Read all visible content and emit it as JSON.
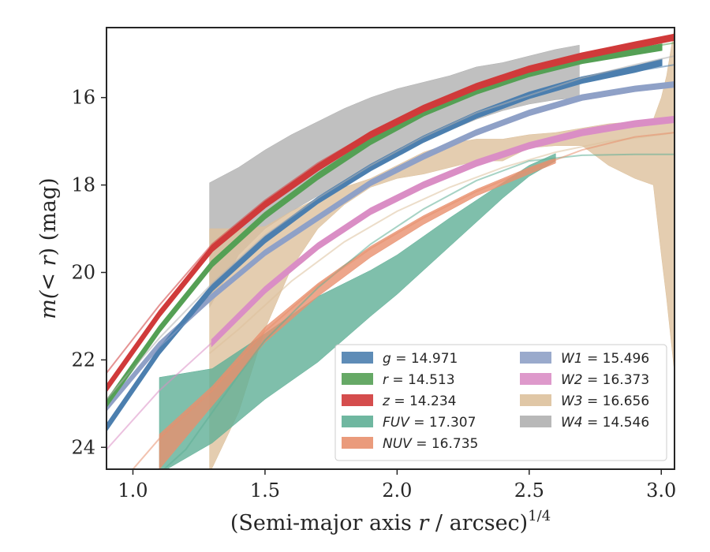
{
  "chart_data": {
    "type": "area",
    "xlabel": "(Semi-major axis r / arcsec)1/4",
    "xlabel_parts": {
      "main": "(Semi-major axis ",
      "var": "r",
      "rest": " / arcsec)",
      "sup": "1/4"
    },
    "ylabel_parts": {
      "main": "m(< ",
      "var": "r",
      "rest": ") (mag)"
    },
    "ylabel": "m(< r) (mag)",
    "xlim": [
      0.9,
      3.05
    ],
    "ylim": [
      24.5,
      14.4
    ],
    "y_inverted": true,
    "x_ticks": [
      1.0,
      1.5,
      2.0,
      2.5,
      3.0
    ],
    "x_tick_labels": [
      "1.0",
      "1.5",
      "2.0",
      "2.5",
      "3.0"
    ],
    "y_ticks": [
      16,
      18,
      20,
      22,
      24
    ],
    "y_tick_labels": [
      "16",
      "18",
      "20",
      "22",
      "24"
    ],
    "grid": false,
    "legend_placement": "lower-right",
    "series": [
      {
        "key": "g",
        "label": "g = 14.971",
        "color": "#4C7FAF",
        "kind": "band",
        "band_x": [
          0.9,
          1.1,
          1.3,
          1.5,
          1.7,
          1.9,
          2.1,
          2.3,
          2.5,
          2.7,
          2.9,
          3.0
        ],
        "band_y": [
          23.55,
          21.8,
          20.35,
          19.25,
          18.35,
          17.6,
          16.95,
          16.4,
          15.95,
          15.6,
          15.35,
          15.2
        ],
        "band_hw": 0.06,
        "model_x": [
          0.9,
          1.1,
          1.3,
          1.5,
          1.7,
          1.9,
          2.1,
          2.3,
          2.5,
          2.7,
          2.9,
          3.05
        ],
        "model_y": [
          23.6,
          21.85,
          20.4,
          19.3,
          18.4,
          17.65,
          17.0,
          16.45,
          16.0,
          15.65,
          15.4,
          15.25
        ]
      },
      {
        "key": "r",
        "label": "r = 14.513",
        "color": "#55A055",
        "kind": "band",
        "band_x": [
          0.9,
          1.1,
          1.3,
          1.5,
          1.7,
          1.9,
          2.1,
          2.3,
          2.5,
          2.7,
          2.9,
          3.0
        ],
        "band_y": [
          23.0,
          21.3,
          19.8,
          18.7,
          17.8,
          17.0,
          16.35,
          15.85,
          15.45,
          15.15,
          14.95,
          14.85
        ],
        "band_hw": 0.06,
        "model_x": [
          0.9,
          1.1,
          1.3,
          1.5,
          1.7,
          1.9,
          2.1,
          2.3,
          2.5,
          2.7,
          2.9,
          3.05
        ],
        "model_y": [
          23.05,
          21.35,
          19.85,
          18.75,
          17.85,
          17.05,
          16.4,
          15.9,
          15.5,
          15.15,
          14.9,
          14.75
        ]
      },
      {
        "key": "z",
        "label": "z = 14.234",
        "color": "#D03A3A",
        "kind": "band",
        "band_x": [
          0.9,
          1.1,
          1.3,
          1.5,
          1.7,
          1.9,
          2.1,
          2.3,
          2.5,
          2.7,
          2.9,
          3.05
        ],
        "band_y": [
          22.65,
          20.95,
          19.45,
          18.45,
          17.6,
          16.85,
          16.25,
          15.75,
          15.35,
          15.05,
          14.8,
          14.62
        ],
        "band_hw": 0.06,
        "model_x": [
          0.9,
          1.1,
          1.3,
          1.5,
          1.7,
          1.9,
          2.1,
          2.3,
          2.5,
          2.7,
          2.9,
          3.05
        ],
        "model_y": [
          22.3,
          20.75,
          19.35,
          18.35,
          17.5,
          16.8,
          16.2,
          15.7,
          15.3,
          15.0,
          14.75,
          14.6
        ]
      },
      {
        "key": "fuv",
        "label": "FUV = 17.307",
        "color": "#5FAF96",
        "kind": "band",
        "band_x": [
          1.1,
          1.3,
          1.5,
          1.7,
          1.9,
          2.0,
          2.2,
          2.4,
          2.5,
          2.6
        ],
        "band_lo": [
          22.4,
          22.2,
          21.4,
          20.55,
          19.95,
          19.6,
          18.75,
          17.95,
          17.55,
          17.28
        ],
        "band_hi": [
          24.6,
          23.9,
          22.9,
          22.05,
          21.0,
          20.5,
          19.4,
          18.3,
          17.8,
          17.45
        ],
        "model_x": [
          1.1,
          1.2,
          1.3,
          1.4,
          1.5,
          1.7,
          1.9,
          2.1,
          2.3,
          2.5,
          2.7,
          2.9,
          3.05
        ],
        "model_y": [
          24.6,
          24.05,
          23.2,
          22.35,
          21.55,
          20.35,
          19.35,
          18.55,
          17.9,
          17.45,
          17.32,
          17.3,
          17.3
        ]
      },
      {
        "key": "nuv",
        "label": "NUV = 16.735",
        "color": "#E8906E",
        "kind": "band",
        "band_x": [
          1.1,
          1.3,
          1.5,
          1.7,
          1.9,
          2.1,
          2.3,
          2.5,
          2.6
        ],
        "band_lo": [
          23.7,
          22.6,
          21.25,
          20.25,
          19.4,
          18.7,
          18.1,
          17.6,
          17.38
        ],
        "band_hi": [
          24.5,
          23.05,
          21.6,
          20.55,
          19.65,
          18.9,
          18.25,
          17.75,
          17.5
        ],
        "model_x": [
          0.9,
          1.1,
          1.3,
          1.5,
          1.7,
          1.9,
          2.1,
          2.3,
          2.5,
          2.7,
          2.9,
          3.05
        ],
        "model_y": [
          25.2,
          23.8,
          22.7,
          21.35,
          20.3,
          19.45,
          18.75,
          18.15,
          17.65,
          17.2,
          16.9,
          16.8
        ]
      },
      {
        "key": "w1",
        "label": "W1 = 15.496",
        "color": "#8FA1C7",
        "kind": "band",
        "band_x": [
          0.9,
          1.1,
          1.3,
          1.5,
          1.7,
          1.9,
          2.1,
          2.3,
          2.5,
          2.7,
          2.9,
          3.05
        ],
        "band_y": [
          23.1,
          21.65,
          20.55,
          19.55,
          18.75,
          17.95,
          17.35,
          16.8,
          16.35,
          16.0,
          15.8,
          15.7
        ],
        "band_hw": 0.05,
        "model_x": [
          0.9,
          1.1,
          1.3,
          1.5,
          1.7,
          1.9,
          2.1,
          2.3,
          2.5,
          2.7,
          2.9,
          3.05
        ],
        "model_y": [
          23.15,
          21.7,
          20.6,
          19.6,
          18.8,
          18.0,
          17.4,
          16.85,
          16.4,
          16.05,
          15.85,
          15.75
        ]
      },
      {
        "key": "w2",
        "label": "W2 = 16.373",
        "color": "#DA8EC5",
        "kind": "band",
        "band_x": [
          1.3,
          1.5,
          1.7,
          1.9,
          2.1,
          2.3,
          2.5,
          2.7,
          2.9,
          3.05
        ],
        "band_y": [
          21.6,
          20.4,
          19.4,
          18.6,
          18.0,
          17.5,
          17.1,
          16.8,
          16.6,
          16.5
        ],
        "band_hw": 0.06,
        "model_x": [
          0.9,
          1.1,
          1.3,
          1.5,
          1.7,
          1.9,
          2.1,
          2.3,
          2.5,
          2.7,
          2.9,
          3.05
        ],
        "model_y": [
          24.05,
          22.7,
          21.6,
          20.45,
          19.45,
          18.65,
          18.05,
          17.55,
          17.15,
          16.85,
          16.65,
          16.5
        ]
      },
      {
        "key": "w3",
        "label": "W3 = 16.656",
        "color": "#DDC19C",
        "kind": "band",
        "band_x": [
          1.29,
          1.4,
          1.5,
          1.6,
          1.7,
          1.8,
          1.9,
          2.0,
          2.1,
          2.2,
          2.3,
          2.4,
          2.5,
          2.6,
          2.7,
          2.8,
          2.9,
          2.97,
          3.0,
          3.02,
          3.05
        ],
        "band_lo": [
          19.0,
          19.0,
          18.95,
          18.6,
          18.3,
          18.05,
          17.85,
          17.55,
          17.25,
          17.05,
          16.95,
          16.95,
          16.85,
          16.8,
          16.7,
          16.6,
          16.55,
          16.5,
          16.0,
          15.5,
          14.4
        ],
        "band_hi": [
          24.6,
          23.2,
          21.3,
          19.9,
          19.0,
          18.45,
          18.05,
          17.85,
          17.75,
          17.6,
          17.45,
          17.45,
          17.15,
          17.1,
          17.1,
          17.55,
          17.85,
          18.0,
          19.6,
          20.6,
          22.3
        ],
        "model_x": [
          1.29,
          1.4,
          1.6,
          1.8,
          2.0,
          2.2,
          2.4,
          2.6,
          2.8,
          3.0,
          3.05
        ],
        "model_y": [
          21.85,
          21.3,
          20.2,
          19.3,
          18.6,
          18.05,
          17.6,
          17.25,
          17.0,
          16.85,
          16.8
        ]
      },
      {
        "key": "w4",
        "label": "W4 = 14.546",
        "color": "#B0B0B0",
        "kind": "band",
        "band_x": [
          1.29,
          1.4,
          1.5,
          1.6,
          1.7,
          1.8,
          1.9,
          2.0,
          2.1,
          2.2,
          2.3,
          2.4,
          2.5,
          2.6,
          2.69
        ],
        "band_lo": [
          17.95,
          17.6,
          17.2,
          16.85,
          16.55,
          16.25,
          16.0,
          15.8,
          15.65,
          15.5,
          15.3,
          15.2,
          15.05,
          14.9,
          14.8
        ],
        "band_hi": [
          20.8,
          19.6,
          19.0,
          18.6,
          18.25,
          17.9,
          17.6,
          17.3,
          17.0,
          16.75,
          16.5,
          16.3,
          16.15,
          16.05,
          16.0
        ],
        "model_x": [
          0.9,
          1.1,
          1.3,
          1.5,
          1.7,
          1.9,
          2.1,
          2.3,
          2.5,
          2.7,
          2.9,
          3.05
        ],
        "model_y": [
          22.9,
          21.5,
          20.25,
          19.15,
          18.3,
          17.55,
          16.9,
          16.35,
          15.95,
          15.55,
          15.25,
          15.05
        ]
      }
    ],
    "legend": [
      {
        "key": "g",
        "name": "g",
        "value": "14.971"
      },
      {
        "key": "r",
        "name": "r",
        "value": "14.513"
      },
      {
        "key": "z",
        "name": "z",
        "value": "14.234"
      },
      {
        "key": "fuv",
        "name": "FUV",
        "value": "17.307"
      },
      {
        "key": "nuv",
        "name": "NUV",
        "value": "16.735"
      },
      {
        "key": "w1",
        "name": "W1",
        "value": "15.496"
      },
      {
        "key": "w2",
        "name": "W2",
        "value": "16.373"
      },
      {
        "key": "w3",
        "name": "W3",
        "value": "16.656"
      },
      {
        "key": "w4",
        "name": "W4",
        "value": "14.546"
      }
    ]
  }
}
